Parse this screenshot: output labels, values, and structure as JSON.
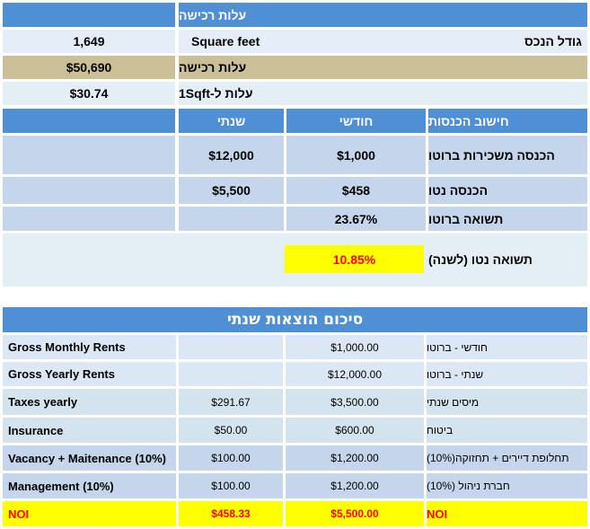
{
  "purchase": {
    "header": "עלות רכישה",
    "property_size_label": "גודל הנכס",
    "property_size_unit": "Square feet",
    "property_size_value": "1,649",
    "purchase_cost_label": "עלות רכישה",
    "purchase_cost_value": "$50,690",
    "cost_per_sqft_label": "עלות ל-1Sqft",
    "cost_per_sqft_value": "$30.74"
  },
  "income": {
    "header": "חישוב הכנסות",
    "monthly_col": "חודשי",
    "yearly_col": "שנתי",
    "rows": [
      {
        "label": "הכנסה משכירות ברוטו",
        "monthly": "$1,000",
        "yearly": "$12,000"
      },
      {
        "label": "הכנסה נטו",
        "monthly": "$458",
        "yearly": "$5,500"
      }
    ],
    "gross_return_label": "תשואה ברוטו",
    "gross_return_value": "23.67%",
    "net_return_label": "תשואה נטו (לשנה)",
    "net_return_value": "10.85%"
  },
  "summary": {
    "title": "סיכום הוצאות שנתי",
    "rows": [
      {
        "en": "Gross Monthly Rents",
        "monthly": "",
        "yearly": "$1,000.00",
        "he": "חודשי - ברוטו"
      },
      {
        "en": "Gross Yearly Rents",
        "monthly": "",
        "yearly": "$12,000.00",
        "he": "שנתי - ברוטו"
      },
      {
        "en": "Taxes yearly",
        "monthly": "$291.67",
        "yearly": "$3,500.00",
        "he": "מיסים שנתי"
      },
      {
        "en": "Insurance",
        "monthly": "$50.00",
        "yearly": "$600.00",
        "he": "ביטוח"
      },
      {
        "en": "Vacancy + Maitenance (10%)",
        "monthly": "$100.00",
        "yearly": "$1,200.00",
        "he": "תחלופת דיירים + תחזוקה(10%)"
      },
      {
        "en": "Management (10%)",
        "monthly": "$100.00",
        "yearly": "$1,200.00",
        "he": "חברת ניהול (10%)"
      },
      {
        "en": "NOI",
        "monthly": "$458.33",
        "yearly": "$5,500.00",
        "he": "NOI"
      }
    ]
  }
}
